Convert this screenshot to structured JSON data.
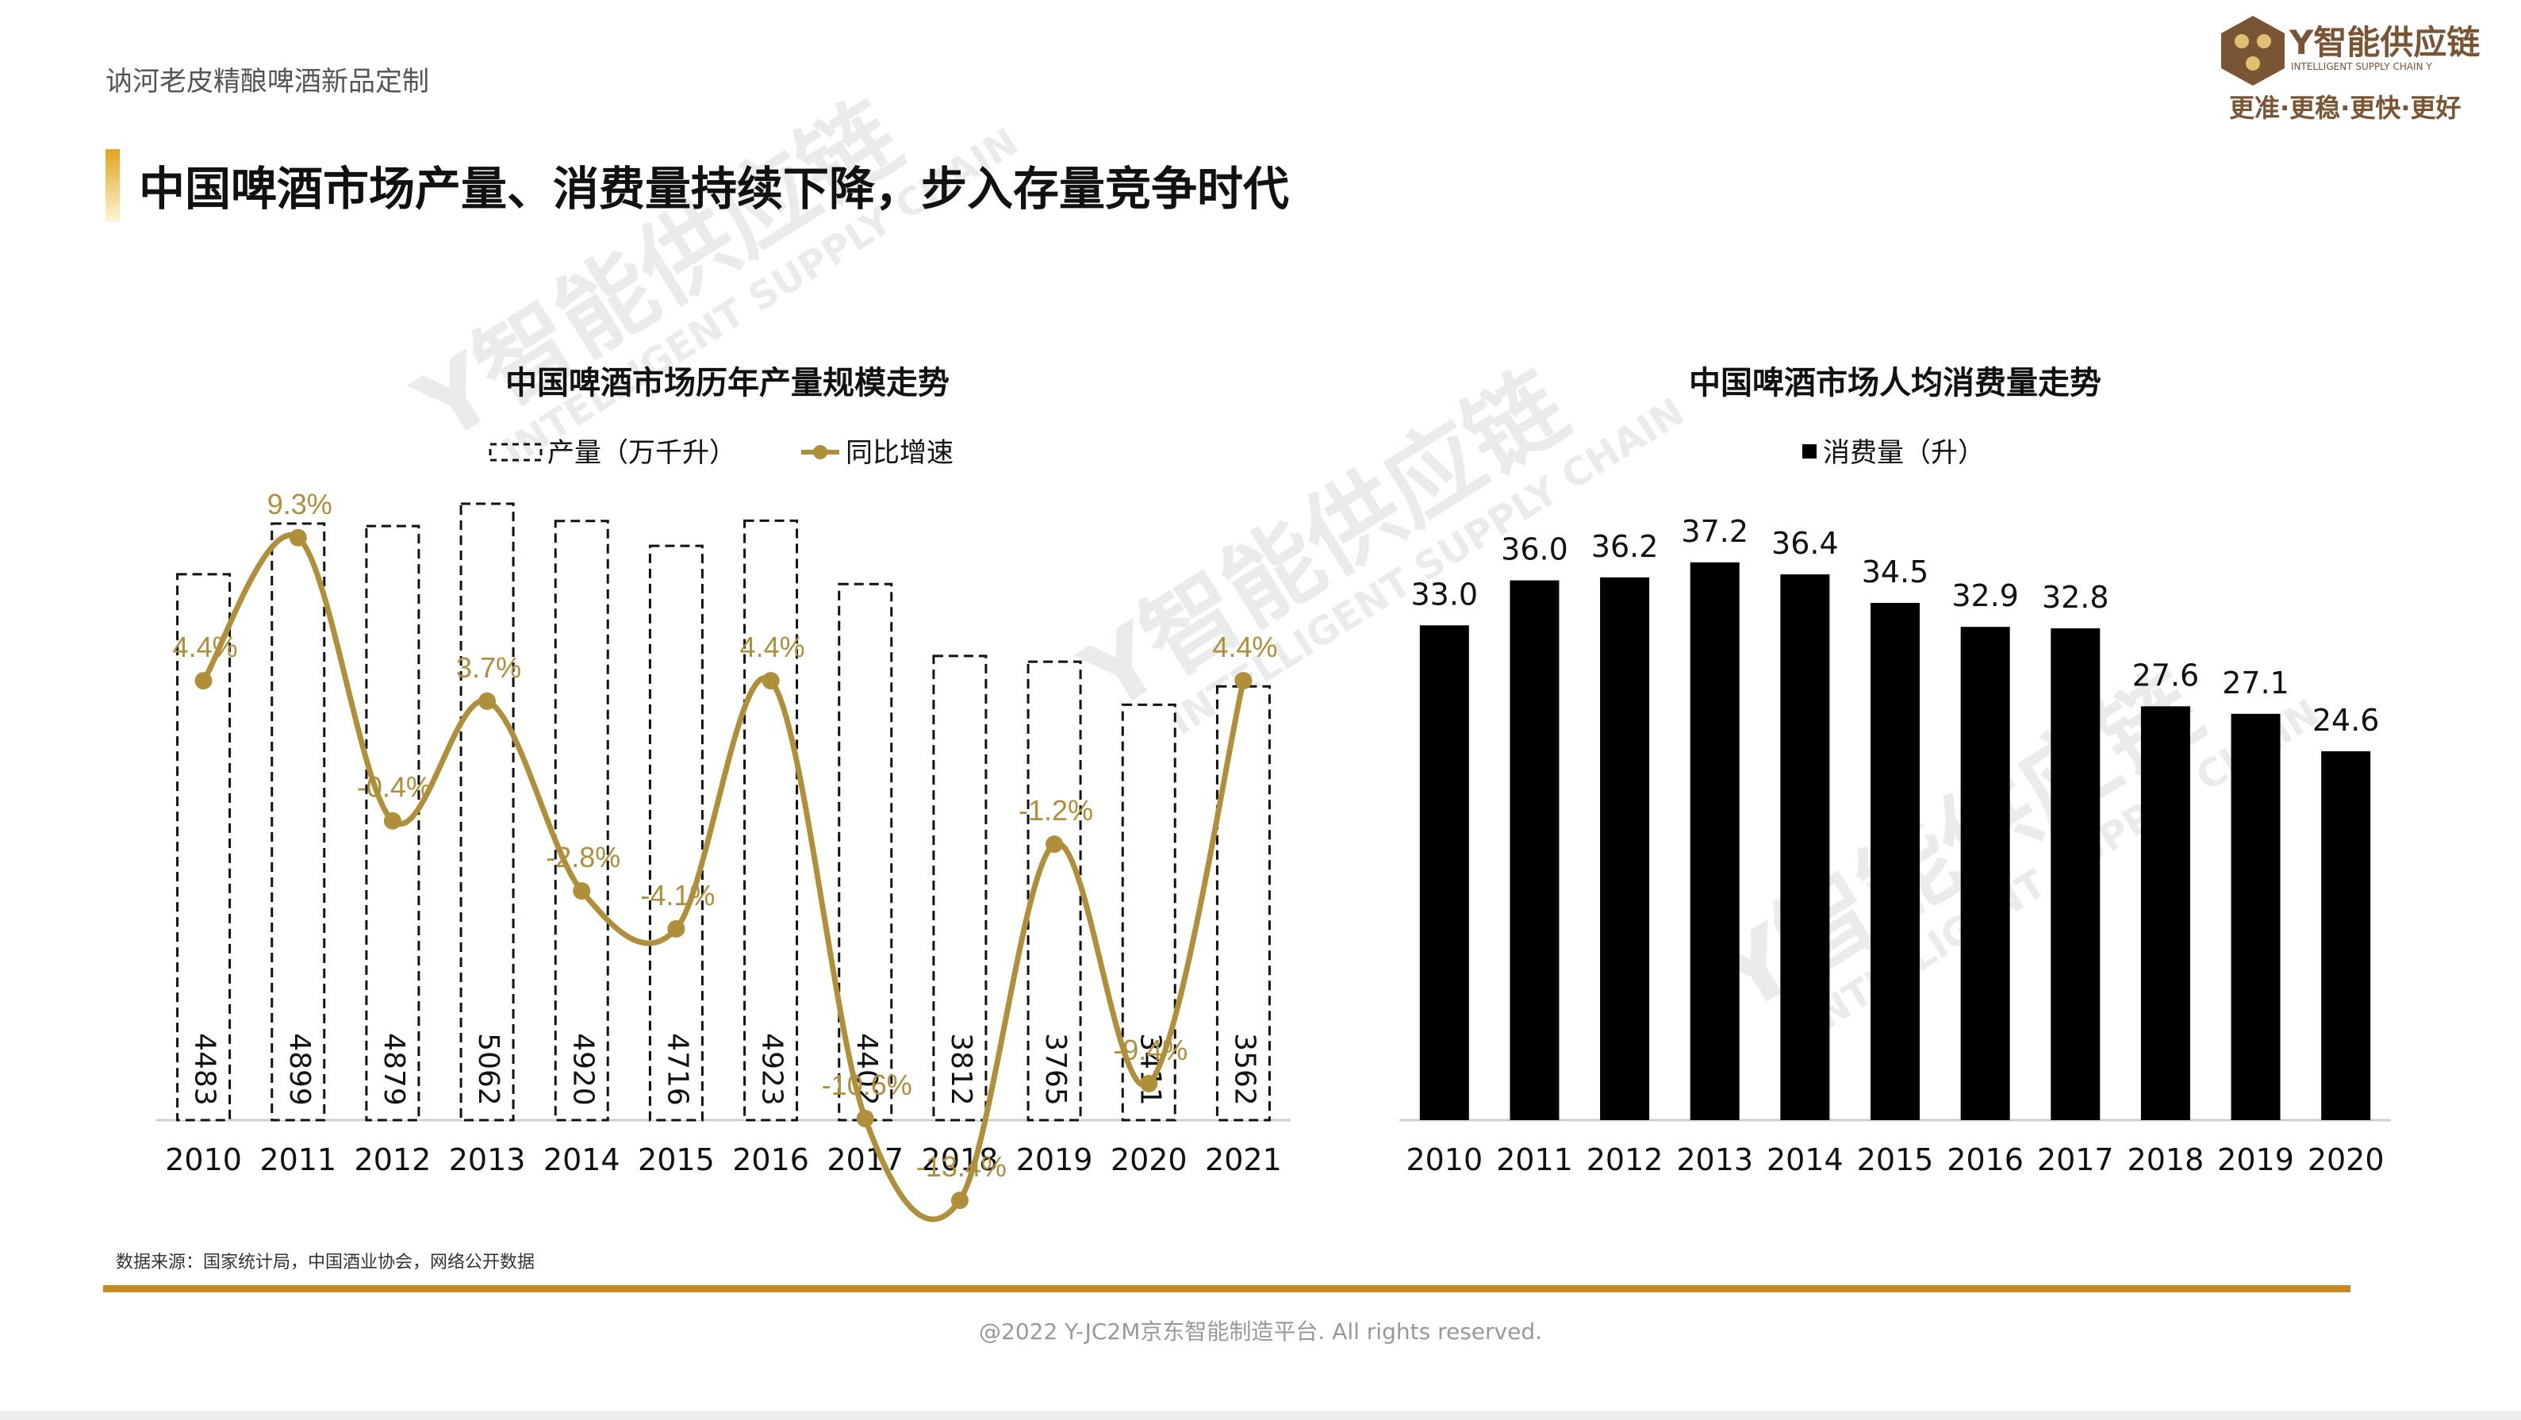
{
  "header": {
    "project_title": "讷河老皮精酿啤酒新品定制",
    "brand_name": "Y智能供应链",
    "brand_sub": "INTELLIGENT SUPPLY CHAIN Y",
    "brand_slogan": "更准·更稳·更快·更好",
    "brand_color": "#7a5533"
  },
  "slide": {
    "title": "中国啤酒市场产量、消费量持续下降，步入存量竞争时代",
    "source": "数据来源：国家统计局，中国酒业协会，网络公开数据",
    "copyright": "@2022 Y-JC2M京东智能制造平台. All rights reserved.",
    "accent_color": "#c88a1e",
    "watermark_text": "Y智能供应链",
    "watermark_sub": "INTELLIGENT SUPPLY CHAIN"
  },
  "chart_data": [
    {
      "type": "bar",
      "title": "中国啤酒市场历年产量规模走势",
      "categories": [
        "2010",
        "2011",
        "2012",
        "2013",
        "2014",
        "2015",
        "2016",
        "2017",
        "2018",
        "2019",
        "2020",
        "2021"
      ],
      "series": [
        {
          "name": "产量（万千升）",
          "type": "bar",
          "style": "dashed-outline",
          "color": "#111111",
          "values": [
            4483,
            4899,
            4879,
            5062,
            4920,
            4716,
            4923,
            4402,
            3812,
            3765,
            3411,
            3562
          ]
        },
        {
          "name": "同比增速",
          "type": "line",
          "style": "smooth-with-markers",
          "color": "#b08f3a",
          "values": [
            4.4,
            9.3,
            -0.4,
            3.7,
            -2.8,
            -4.1,
            4.4,
            -10.6,
            -13.4,
            -1.2,
            -9.4,
            4.4
          ],
          "labels": [
            "4.4%",
            "9.3%",
            "-0.4%",
            "3.7%",
            "-2.8%",
            "-4.1%",
            "4.4%",
            "-10.6%",
            "-13.4%",
            "-1.2%",
            "-9.4%",
            "4.4%"
          ]
        }
      ],
      "legend": "top",
      "grid": false
    },
    {
      "type": "bar",
      "title": "中国啤酒市场人均消费量走势",
      "categories": [
        "2010",
        "2011",
        "2012",
        "2013",
        "2014",
        "2015",
        "2016",
        "2017",
        "2018",
        "2019",
        "2020"
      ],
      "series": [
        {
          "name": "消费量（升）",
          "color": "#000000",
          "values": [
            33.0,
            36.0,
            36.2,
            37.2,
            36.4,
            34.5,
            32.9,
            32.8,
            27.6,
            27.1,
            24.6
          ],
          "labels": [
            "33.0",
            "36.0",
            "36.2",
            "37.2",
            "36.4",
            "34.5",
            "32.9",
            "32.8",
            "27.6",
            "27.1",
            "24.6"
          ]
        }
      ],
      "legend": "top",
      "grid": false
    }
  ]
}
